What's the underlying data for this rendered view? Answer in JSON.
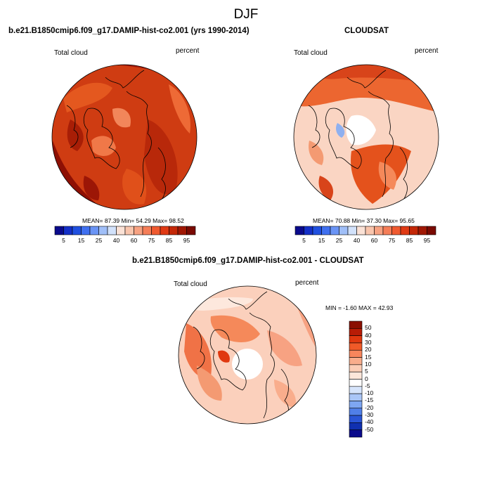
{
  "figure_title": "DJF",
  "panels": [
    {
      "title": "b.e21.B1850cmip6.f09_g17.DAMIP-hist-co2.001 (yrs 1990-2014)",
      "variable": "Total cloud",
      "units": "percent",
      "stats": {
        "mean": "87.39",
        "min": "54.29",
        "max": "98.52"
      },
      "stats_text": "MEAN=  87.39  Min=  54.29  Max=  98.52"
    },
    {
      "title": "CLOUDSAT",
      "variable": "Total cloud",
      "units": "percent",
      "stats": {
        "mean": "70.88",
        "min": "37.30",
        "max": "95.65"
      },
      "stats_text": "MEAN=  70.88  Min=  37.30  Max=  95.65"
    },
    {
      "title": "b.e21.B1850cmip6.f09_g17.DAMIP-hist-co2.001 - CLOUDSAT",
      "variable": "Total cloud",
      "units": "percent",
      "stats": {
        "min": "-1.60",
        "max": "42.93"
      },
      "stats_text": "MIN =  -1.60 MAX =  42.93"
    }
  ],
  "abs_colorbar": {
    "labels": [
      "5",
      "15",
      "25",
      "40",
      "60",
      "75",
      "85",
      "95"
    ],
    "colors": [
      "#0a0a8c",
      "#1430c8",
      "#2050e0",
      "#4070f0",
      "#6a94f5",
      "#a0bff8",
      "#d2e2fb",
      "#fbe2d6",
      "#f9c5ad",
      "#f7a282",
      "#f57e58",
      "#f05a30",
      "#e03a14",
      "#c42808",
      "#a01804",
      "#7a0a02"
    ]
  },
  "diff_colorbar": {
    "labels": [
      "50",
      "40",
      "30",
      "20",
      "15",
      "10",
      "5",
      "0",
      "-5",
      "-10",
      "-15",
      "-20",
      "-30",
      "-40",
      "-50"
    ],
    "colors": [
      "#8a0f02",
      "#b81c06",
      "#e0380f",
      "#f05a28",
      "#f7865d",
      "#f9ad8c",
      "#fbcdb6",
      "#fce6da",
      "#ffffff",
      "#d6e4fb",
      "#aac6f7",
      "#7ea6f2",
      "#507fe8",
      "#2a55d6",
      "#1030b0",
      "#0a0a8c"
    ]
  },
  "map_colors": {
    "p1_base": "#cf3c12",
    "p2_base": "#fad5c3",
    "p3_base": "#fbd0bc",
    "pole_hole": "#ffffff",
    "coast": "#000000"
  }
}
